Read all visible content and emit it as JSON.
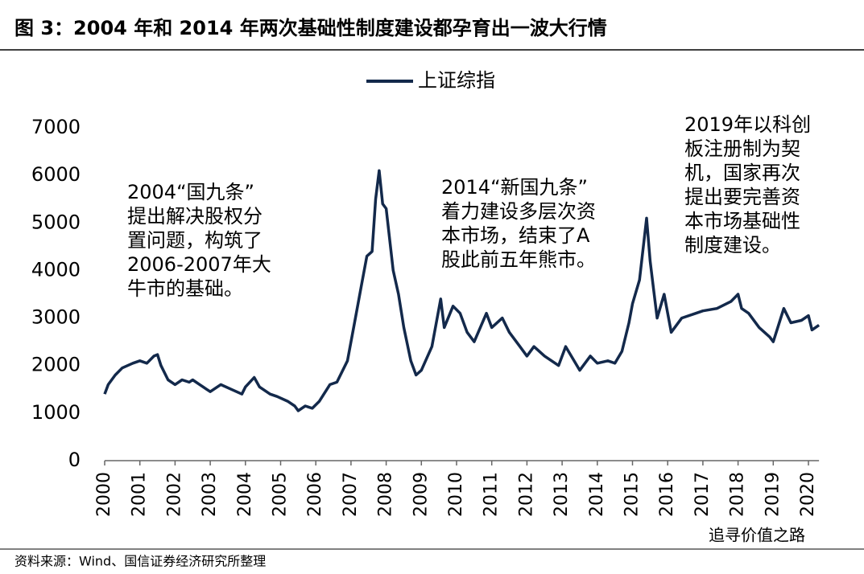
{
  "chart_data": {
    "type": "line",
    "title": "图  3：2004 年和 2014 年两次基础性制度建设都孕育出一波大行情",
    "source": "资料来源：Wind、国信证券经济研究所整理",
    "watermark": "追寻价值之路",
    "legend": "top",
    "annotations": [
      [
        "2004“国九条”",
        "提出解决股权分",
        "置问题，构筑了",
        "2006-2007年大",
        "牛市的基础。"
      ],
      [
        "2014“新国九条”",
        "着力建设多层次资",
        "本市场，结束了A",
        "股此前五年熊市。"
      ],
      [
        "2019年以科创",
        "板注册制为契",
        "机，国家再次",
        "提出要完善资",
        "本市场基础性",
        "制度建设。"
      ]
    ],
    "x": [
      2000.0,
      2000.1,
      2000.3,
      2000.5,
      2000.8,
      2001.0,
      2001.2,
      2001.4,
      2001.5,
      2001.6,
      2001.8,
      2002.0,
      2002.2,
      2002.4,
      2002.5,
      2002.7,
      2002.9,
      2003.0,
      2003.3,
      2003.6,
      2003.9,
      2004.0,
      2004.25,
      2004.4,
      2004.7,
      2004.9,
      2005.2,
      2005.4,
      2005.5,
      2005.7,
      2005.9,
      2006.1,
      2006.4,
      2006.6,
      2006.9,
      2007.1,
      2007.3,
      2007.45,
      2007.6,
      2007.7,
      2007.8,
      2007.9,
      2008.0,
      2008.2,
      2008.35,
      2008.5,
      2008.7,
      2008.85,
      2009.0,
      2009.3,
      2009.55,
      2009.65,
      2009.9,
      2010.1,
      2010.3,
      2010.5,
      2010.85,
      2011.0,
      2011.3,
      2011.5,
      2011.8,
      2012.0,
      2012.2,
      2012.5,
      2012.9,
      2013.1,
      2013.5,
      2013.8,
      2014.0,
      2014.3,
      2014.5,
      2014.7,
      2014.9,
      2015.0,
      2015.2,
      2015.4,
      2015.5,
      2015.6,
      2015.7,
      2015.9,
      2016.0,
      2016.1,
      2016.4,
      2016.8,
      2017.0,
      2017.4,
      2017.8,
      2018.0,
      2018.1,
      2018.3,
      2018.6,
      2018.9,
      2019.0,
      2019.3,
      2019.5,
      2019.8,
      2020.0,
      2020.1,
      2020.3
    ],
    "series": [
      {
        "name": "上证综指",
        "color": "#13294b",
        "values": [
          1400,
          1600,
          1800,
          1950,
          2050,
          2100,
          2050,
          2200,
          2230,
          2000,
          1700,
          1600,
          1700,
          1650,
          1700,
          1600,
          1500,
          1450,
          1600,
          1500,
          1400,
          1550,
          1750,
          1550,
          1400,
          1350,
          1250,
          1150,
          1050,
          1150,
          1100,
          1250,
          1600,
          1650,
          2100,
          2900,
          3700,
          4300,
          4400,
          5500,
          6100,
          5400,
          5300,
          4000,
          3500,
          2800,
          2100,
          1800,
          1900,
          2400,
          3400,
          2800,
          3250,
          3100,
          2700,
          2500,
          3100,
          2800,
          3000,
          2700,
          2400,
          2200,
          2400,
          2200,
          2000,
          2400,
          1900,
          2200,
          2050,
          2100,
          2050,
          2300,
          2900,
          3300,
          3800,
          5100,
          4200,
          3600,
          3000,
          3500,
          3100,
          2700,
          3000,
          3100,
          3150,
          3200,
          3350,
          3500,
          3200,
          3100,
          2800,
          2600,
          2500,
          3200,
          2900,
          2950,
          3050,
          2750,
          2850
        ]
      }
    ],
    "xlim": [
      2000,
      2020.3
    ],
    "xticks": [
      2000,
      2001,
      2002,
      2003,
      2004,
      2005,
      2006,
      2007,
      2008,
      2009,
      2010,
      2011,
      2012,
      2013,
      2014,
      2015,
      2016,
      2017,
      2018,
      2019,
      2020
    ],
    "ylim": [
      0,
      7000
    ],
    "yticks": [
      0,
      1000,
      2000,
      3000,
      4000,
      5000,
      6000,
      7000
    ]
  }
}
